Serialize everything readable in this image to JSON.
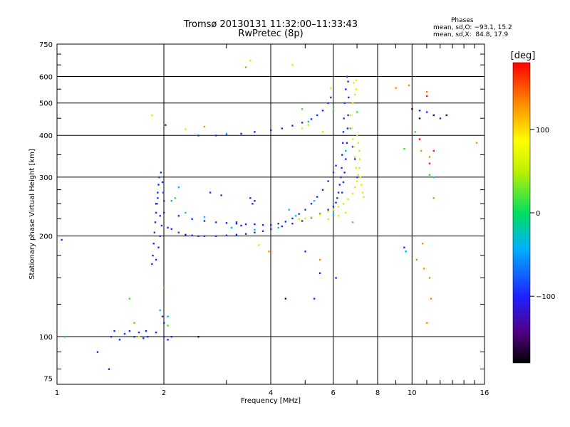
{
  "header": {
    "title_line1": "Tromsø 20130131 11:32:00–11:33:43",
    "title_line2": "RwPretec (8p)"
  },
  "stats": {
    "heading": "Phases",
    "line_o": "mean, sd,O: −93.1, 15.2",
    "line_x": "mean, sd,X:  84.8, 17.9"
  },
  "colorbar": {
    "label": "[deg]",
    "range": [
      -180,
      180
    ],
    "ticks": [
      "100",
      "0",
      "−100"
    ],
    "tick_values": [
      100,
      0,
      -100
    ]
  },
  "chart_data": {
    "type": "scatter",
    "xlabel": "Frequency [MHz]",
    "ylabel": "Stationary phase Virtual Height [km]",
    "x_scale": "log",
    "y_scale": "log",
    "xlim": [
      1,
      16
    ],
    "ylim": [
      72,
      750
    ],
    "x_ticks": [
      1,
      2,
      4,
      6,
      8,
      10,
      16
    ],
    "x_tick_labels": [
      "1",
      "2",
      "4",
      "6",
      "8",
      "10",
      "16"
    ],
    "y_ticks": [
      75,
      100,
      200,
      300,
      400,
      500,
      600,
      750
    ],
    "y_tick_labels": [
      "75",
      "100",
      "200",
      "300",
      "400",
      "500",
      "600",
      "750"
    ],
    "grid": true,
    "vgrid": [
      2,
      4,
      6,
      8,
      10
    ],
    "hgrid": [
      100,
      200,
      300,
      400,
      500,
      600
    ],
    "series": [
      {
        "color": "#1030ff",
        "points": [
          [
            1.03,
            195
          ],
          [
            1.3,
            90
          ],
          [
            1.4,
            80
          ],
          [
            1.42,
            100
          ],
          [
            1.45,
            104
          ],
          [
            1.5,
            98
          ],
          [
            1.55,
            102
          ],
          [
            1.6,
            104
          ],
          [
            1.65,
            100
          ],
          [
            1.7,
            103
          ],
          [
            1.75,
            99
          ],
          [
            1.78,
            104
          ],
          [
            1.8,
            100
          ],
          [
            1.9,
            103
          ],
          [
            2.0,
            100
          ],
          [
            2.05,
            98
          ],
          [
            2.1,
            100
          ],
          [
            1.85,
            165
          ],
          [
            1.86,
            175
          ],
          [
            1.87,
            190
          ],
          [
            1.88,
            205
          ],
          [
            1.89,
            220
          ],
          [
            1.9,
            235
          ],
          [
            1.91,
            250
          ],
          [
            1.92,
            270
          ],
          [
            1.93,
            285
          ],
          [
            1.94,
            300
          ],
          [
            1.96,
            310
          ],
          [
            1.98,
            290
          ],
          [
            1.99,
            270
          ],
          [
            2.0,
            255
          ],
          [
            2.0,
            235
          ],
          [
            1.97,
            215
          ],
          [
            1.95,
            200
          ],
          [
            1.93,
            185
          ],
          [
            1.9,
            170
          ],
          [
            2.0,
            110
          ],
          [
            1.98,
            115
          ],
          [
            2.02,
            430
          ],
          [
            1.9,
            250
          ],
          [
            1.92,
            260
          ],
          [
            1.95,
            230
          ],
          [
            2.05,
            212
          ],
          [
            2.1,
            210
          ],
          [
            2.2,
            205
          ],
          [
            2.3,
            202
          ],
          [
            2.4,
            201
          ],
          [
            2.5,
            200
          ],
          [
            2.6,
            200
          ],
          [
            2.8,
            200
          ],
          [
            3.0,
            201
          ],
          [
            3.2,
            202
          ],
          [
            3.4,
            203
          ],
          [
            3.6,
            205
          ],
          [
            3.8,
            207
          ],
          [
            4.0,
            210
          ],
          [
            4.3,
            214
          ],
          [
            4.6,
            218
          ],
          [
            4.9,
            222
          ],
          [
            5.2,
            227
          ],
          [
            5.5,
            233
          ],
          [
            5.8,
            240
          ],
          [
            6.0,
            245
          ],
          [
            6.1,
            252
          ],
          [
            6.15,
            260
          ],
          [
            6.2,
            270
          ],
          [
            6.25,
            285
          ],
          [
            6.3,
            300
          ],
          [
            6.33,
            320
          ],
          [
            6.35,
            350
          ],
          [
            6.38,
            380
          ],
          [
            6.4,
            410
          ],
          [
            6.42,
            450
          ],
          [
            6.45,
            500
          ],
          [
            6.5,
            550
          ],
          [
            6.55,
            600
          ],
          [
            6.6,
            580
          ],
          [
            6.62,
            520
          ],
          [
            6.6,
            460
          ],
          [
            6.58,
            420
          ],
          [
            6.55,
            380
          ],
          [
            6.5,
            340
          ],
          [
            6.45,
            310
          ],
          [
            6.4,
            290
          ],
          [
            6.35,
            270
          ],
          [
            2.2,
            230
          ],
          [
            2.4,
            225
          ],
          [
            2.6,
            222
          ],
          [
            2.8,
            220
          ],
          [
            3.0,
            219
          ],
          [
            3.2,
            218
          ],
          [
            3.4,
            217
          ],
          [
            3.6,
            217
          ],
          [
            3.8,
            216
          ],
          [
            4.0,
            216
          ],
          [
            4.2,
            218
          ],
          [
            4.4,
            221
          ],
          [
            4.6,
            226
          ],
          [
            4.8,
            233
          ],
          [
            5.0,
            240
          ],
          [
            5.2,
            250
          ],
          [
            5.4,
            262
          ],
          [
            5.6,
            275
          ],
          [
            5.8,
            292
          ],
          [
            6.0,
            310
          ],
          [
            6.1,
            325
          ],
          [
            2.5,
            400
          ],
          [
            2.8,
            400
          ],
          [
            3.0,
            402
          ],
          [
            3.3,
            405
          ],
          [
            3.6,
            410
          ],
          [
            4.0,
            415
          ],
          [
            4.3,
            420
          ],
          [
            4.6,
            428
          ],
          [
            4.9,
            437
          ],
          [
            5.2,
            448
          ],
          [
            5.4,
            460
          ],
          [
            5.6,
            475
          ],
          [
            5.8,
            500
          ],
          [
            5.9,
            520
          ],
          [
            3.5,
            260
          ],
          [
            3.6,
            255
          ],
          [
            3.55,
            250
          ],
          [
            3.2,
            220
          ],
          [
            3.3,
            215
          ],
          [
            2.7,
            270
          ],
          [
            2.9,
            265
          ],
          [
            5.0,
            180
          ],
          [
            5.5,
            155
          ],
          [
            6.1,
            150
          ],
          [
            9.5,
            185
          ],
          [
            10.5,
            475
          ],
          [
            11.0,
            470
          ],
          [
            12.0,
            450
          ],
          [
            6.8,
            370
          ],
          [
            6.9,
            340
          ],
          [
            7.0,
            300
          ],
          [
            5.3,
            130
          ]
        ]
      },
      {
        "color": "#00b8ff",
        "points": [
          [
            1.05,
            100
          ],
          [
            1.95,
            120
          ],
          [
            2.05,
            115
          ],
          [
            2.1,
            255
          ],
          [
            2.3,
            235
          ],
          [
            2.6,
            228
          ],
          [
            3.1,
            212
          ],
          [
            3.6,
            209
          ],
          [
            4.2,
            212
          ],
          [
            4.7,
            230
          ],
          [
            5.3,
            255
          ],
          [
            6.0,
            232
          ],
          [
            6.5,
            360
          ],
          [
            6.7,
            420
          ],
          [
            4.5,
            240
          ],
          [
            5.1,
            440
          ],
          [
            11.5,
            300
          ],
          [
            3.0,
            405
          ],
          [
            2.2,
            280
          ],
          [
            9.6,
            180
          ]
        ]
      },
      {
        "color": "#40e040",
        "points": [
          [
            2.05,
            108
          ],
          [
            1.6,
            130
          ],
          [
            4.9,
            480
          ],
          [
            6.0,
            480
          ],
          [
            7.0,
            470
          ],
          [
            9.5,
            365
          ],
          [
            10.2,
            410
          ],
          [
            11.2,
            305
          ],
          [
            2.15,
            260
          ],
          [
            6.8,
            220
          ]
        ]
      },
      {
        "color": "#e8e800",
        "points": [
          [
            1.85,
            460
          ],
          [
            2.3,
            418
          ],
          [
            4.8,
            225
          ],
          [
            5.0,
            226
          ],
          [
            5.2,
            228
          ],
          [
            5.5,
            232
          ],
          [
            5.8,
            237
          ],
          [
            6.0,
            240
          ],
          [
            6.2,
            245
          ],
          [
            6.4,
            250
          ],
          [
            6.6,
            258
          ],
          [
            6.8,
            268
          ],
          [
            6.9,
            280
          ],
          [
            7.0,
            292
          ],
          [
            7.05,
            305
          ],
          [
            7.1,
            320
          ],
          [
            7.12,
            340
          ],
          [
            7.1,
            360
          ],
          [
            7.05,
            380
          ],
          [
            7.0,
            400
          ],
          [
            7.15,
            300
          ],
          [
            7.2,
            285
          ],
          [
            7.25,
            270
          ],
          [
            7.3,
            262
          ],
          [
            6.95,
            320
          ],
          [
            6.9,
            345
          ],
          [
            6.85,
            370
          ],
          [
            6.8,
            390
          ],
          [
            6.75,
            420
          ],
          [
            6.7,
            460
          ],
          [
            6.8,
            500
          ],
          [
            6.9,
            530
          ],
          [
            6.95,
            550
          ],
          [
            6.85,
            575
          ],
          [
            6.95,
            585
          ],
          [
            5.8,
            225
          ],
          [
            6.2,
            230
          ],
          [
            6.5,
            235
          ],
          [
            4.9,
            420
          ],
          [
            5.1,
            430
          ],
          [
            3.7,
            188
          ],
          [
            4.6,
            650
          ],
          [
            3.5,
            670
          ],
          [
            1.7,
            100
          ],
          [
            5.6,
            410
          ],
          [
            5.9,
            555
          ]
        ]
      },
      {
        "color": "#ff8c00",
        "points": [
          [
            2.6,
            425
          ],
          [
            2.0,
            140
          ],
          [
            1.65,
            110
          ],
          [
            3.4,
            640
          ],
          [
            3.95,
            180
          ],
          [
            5.5,
            170
          ],
          [
            9.0,
            555
          ],
          [
            9.8,
            565
          ],
          [
            10.5,
            390
          ],
          [
            10.6,
            360
          ],
          [
            11.0,
            540
          ],
          [
            11.2,
            345
          ],
          [
            10.8,
            160
          ],
          [
            11.3,
            130
          ],
          [
            11.0,
            110
          ],
          [
            11.2,
            150
          ],
          [
            10.3,
            170
          ],
          [
            10.7,
            190
          ],
          [
            11.5,
            260
          ],
          [
            15.2,
            380
          ]
        ]
      },
      {
        "color": "#ff1a1a",
        "points": [
          [
            11.0,
            525
          ],
          [
            11.2,
            330
          ],
          [
            10.5,
            390
          ],
          [
            11.5,
            360
          ]
        ]
      },
      {
        "color": "#300050",
        "points": [
          [
            2.5,
            100
          ],
          [
            10.0,
            480
          ],
          [
            11.5,
            460
          ],
          [
            4.4,
            130
          ],
          [
            12.5,
            460
          ],
          [
            10.5,
            450
          ]
        ]
      }
    ]
  }
}
